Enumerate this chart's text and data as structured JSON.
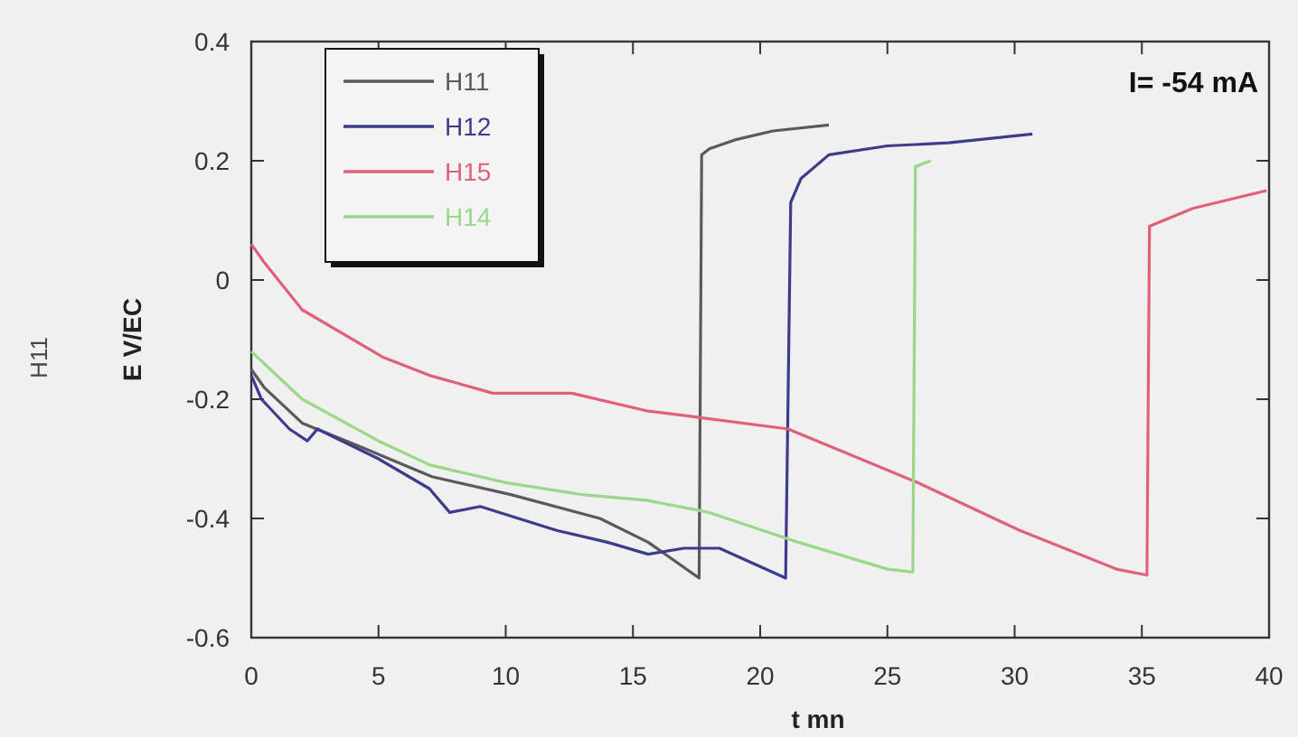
{
  "chart_data": {
    "type": "line",
    "xlabel": "t mn",
    "ylabel": "E V/EC",
    "annotations": [
      "I= -54 mA",
      "H11"
    ],
    "xlim": [
      0,
      40
    ],
    "ylim": [
      -0.6,
      0.4
    ],
    "xticks": [
      0,
      5,
      10,
      15,
      20,
      25,
      30,
      35,
      40
    ],
    "yticks": [
      -0.6,
      -0.4,
      -0.2,
      0,
      0.2,
      0.4
    ],
    "legend": "top left",
    "grid": false,
    "marker": "none",
    "series": [
      {
        "name": "H11",
        "color": "#5a5a5a",
        "x": [
          0,
          0.5,
          2,
          4.3,
          7.1,
          10.2,
          13.7,
          15.6,
          17.6,
          17.7,
          18,
          19,
          20.5,
          22.7
        ],
        "values": [
          -0.15,
          -0.18,
          -0.24,
          -0.28,
          -0.33,
          -0.36,
          -0.4,
          -0.44,
          -0.5,
          0.21,
          0.22,
          0.235,
          0.25,
          0.26
        ]
      },
      {
        "name": "H12",
        "color": "#3c3c8c",
        "x": [
          0,
          0.4,
          1.5,
          2.2,
          2.6,
          5,
          7,
          7.8,
          9,
          12,
          14,
          15.6,
          17,
          18.4,
          21,
          21.2,
          21.6,
          22.7,
          25,
          27.4,
          30.7
        ],
        "values": [
          -0.16,
          -0.2,
          -0.25,
          -0.27,
          -0.25,
          -0.3,
          -0.35,
          -0.39,
          -0.38,
          -0.42,
          -0.44,
          -0.46,
          -0.45,
          -0.45,
          -0.5,
          0.13,
          0.17,
          0.21,
          0.225,
          0.23,
          0.245
        ]
      },
      {
        "name": "H15",
        "color": "#e0607a",
        "x": [
          0,
          0.5,
          2,
          5.2,
          7,
          9.5,
          12.6,
          15.6,
          17.5,
          21.1,
          26.2,
          30.2,
          34,
          35.2,
          35.3,
          37,
          39.9
        ],
        "values": [
          0.06,
          0.03,
          -0.05,
          -0.13,
          -0.16,
          -0.19,
          -0.19,
          -0.22,
          -0.23,
          -0.25,
          -0.34,
          -0.42,
          -0.485,
          -0.495,
          0.09,
          0.12,
          0.15
        ]
      },
      {
        "name": "H14",
        "color": "#98d888",
        "x": [
          0,
          2,
          5,
          7,
          10,
          13,
          15.6,
          18,
          21.5,
          25,
          26,
          26.1,
          26.7
        ],
        "values": [
          -0.12,
          -0.2,
          -0.27,
          -0.31,
          -0.34,
          -0.36,
          -0.37,
          -0.39,
          -0.44,
          -0.485,
          -0.49,
          0.19,
          0.2
        ]
      }
    ]
  }
}
